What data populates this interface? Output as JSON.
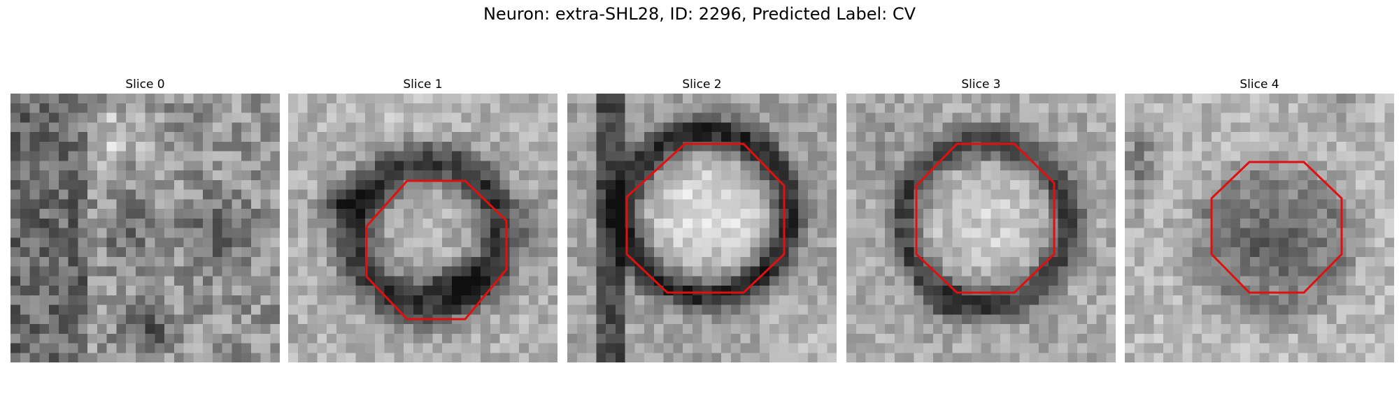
{
  "figure": {
    "title": "Neuron: extra-SHL28, ID: 2296, Predicted Label: CV"
  },
  "panels": [
    {
      "title": "Slice 0",
      "has_contour": false,
      "contour_color": "#e01010"
    },
    {
      "title": "Slice 1",
      "has_contour": true,
      "contour_color": "#e01010"
    },
    {
      "title": "Slice 2",
      "has_contour": true,
      "contour_color": "#e01010"
    },
    {
      "title": "Slice 3",
      "has_contour": true,
      "contour_color": "#e01010"
    },
    {
      "title": "Slice 4",
      "has_contour": true,
      "contour_color": "#e01010"
    }
  ],
  "colormap": "gray"
}
